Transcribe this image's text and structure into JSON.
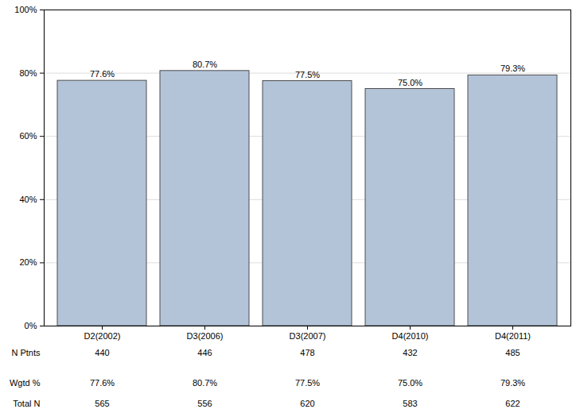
{
  "chart_data": {
    "type": "bar",
    "categories": [
      "D2(2002)",
      "D3(2006)",
      "D3(2007)",
      "D4(2010)",
      "D4(2011)"
    ],
    "values": [
      77.6,
      80.7,
      77.5,
      75.0,
      79.3
    ],
    "value_labels": [
      "77.6%",
      "80.7%",
      "77.5%",
      "75.0%",
      "79.3%"
    ],
    "data_labels": true,
    "color": "#b3c4d9",
    "ylim": [
      0,
      100
    ],
    "yticks": [
      {
        "value": 0,
        "label": "0%"
      },
      {
        "value": 20,
        "label": "20%"
      },
      {
        "value": 40,
        "label": "40%"
      },
      {
        "value": 60,
        "label": "60%"
      },
      {
        "value": 80,
        "label": "80%"
      },
      {
        "value": 100,
        "label": "100%"
      }
    ],
    "grid": true,
    "table": [
      {
        "label": "N Ptnts",
        "values": [
          440,
          446,
          478,
          432,
          485
        ]
      },
      {
        "label": "Wgtd %",
        "values": [
          77.6,
          80.7,
          77.5,
          75.0,
          79.3
        ],
        "value_labels": [
          "77.6%",
          "80.7%",
          "77.5%",
          "75.0%",
          "79.3%"
        ]
      },
      {
        "label": "Total N",
        "values": [
          565,
          556,
          620,
          583,
          622
        ]
      }
    ]
  }
}
